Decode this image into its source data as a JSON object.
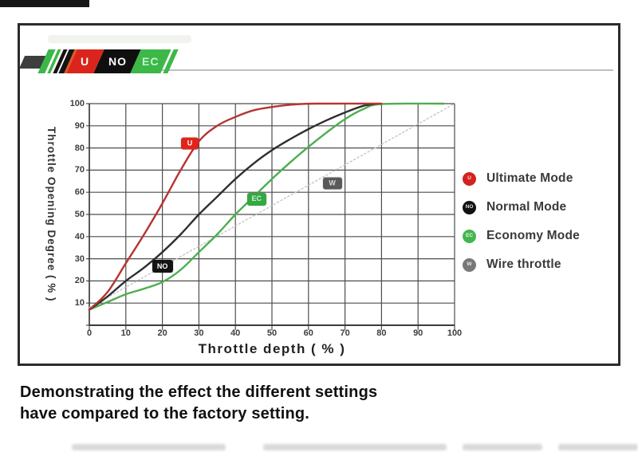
{
  "top_left_bar": {
    "color": "#171717"
  },
  "logo": {
    "gray_bar_color": "#3e3e3e",
    "stripes": [
      {
        "color": "#3cb849",
        "w": 9
      },
      {
        "color": "#ffffff",
        "w": 3
      },
      {
        "color": "#3cb849",
        "w": 4
      },
      {
        "color": "#ffffff",
        "w": 3
      },
      {
        "color": "#141414",
        "w": 5
      },
      {
        "color": "#ffffff",
        "w": 2
      },
      {
        "color": "#141414",
        "w": 7
      },
      {
        "color": "#e2571e",
        "w": 3
      }
    ],
    "blocks": [
      {
        "label": "U",
        "bg": "#da251d",
        "fg": "#ffffff",
        "w": 34
      },
      {
        "label": "NO",
        "bg": "#0f0f0f",
        "fg": "#ffffff",
        "w": 46
      },
      {
        "label": "EC",
        "bg": "#3cb849",
        "fg": "#c9f2cd",
        "w": 38
      }
    ],
    "tail_slash": {
      "color": "#3cb849",
      "w": 6
    }
  },
  "chart_data": {
    "type": "line",
    "xlabel": "Throttle depth ( % )",
    "ylabel": "Throttle Opening Degree ( % )",
    "xlim": [
      0,
      100
    ],
    "ylim": [
      0,
      100
    ],
    "x_ticks": [
      0,
      10,
      20,
      30,
      40,
      50,
      60,
      70,
      80,
      90,
      100
    ],
    "y_ticks": [
      10,
      20,
      30,
      40,
      50,
      60,
      70,
      80,
      90,
      100
    ],
    "grid": true,
    "grid_color": "#4d4d4d",
    "legend_position": "right",
    "series": [
      {
        "name": "Wire throttle",
        "color": "#c4c4c4",
        "style": "dotted",
        "points": [
          [
            0,
            8
          ],
          [
            100,
            100
          ]
        ]
      },
      {
        "name": "Economy Mode",
        "color": "#4cae4f",
        "style": "solid",
        "points": [
          [
            0,
            7
          ],
          [
            5,
            10.5
          ],
          [
            10,
            14
          ],
          [
            15,
            16.5
          ],
          [
            20,
            19.5
          ],
          [
            25,
            25
          ],
          [
            30,
            33
          ],
          [
            35,
            41
          ],
          [
            40,
            50
          ],
          [
            45,
            58
          ],
          [
            50,
            66
          ],
          [
            55,
            73.5
          ],
          [
            60,
            80.5
          ],
          [
            65,
            87
          ],
          [
            70,
            93
          ],
          [
            75,
            97.5
          ],
          [
            80,
            99.8
          ],
          [
            97,
            100
          ]
        ]
      },
      {
        "name": "Normal Mode",
        "color": "#2e2e2e",
        "style": "solid",
        "points": [
          [
            0,
            7
          ],
          [
            5,
            13
          ],
          [
            10,
            20
          ],
          [
            15,
            26
          ],
          [
            20,
            33
          ],
          [
            25,
            41
          ],
          [
            30,
            50
          ],
          [
            35,
            58
          ],
          [
            40,
            66
          ],
          [
            45,
            73
          ],
          [
            50,
            79
          ],
          [
            55,
            84
          ],
          [
            60,
            88.5
          ],
          [
            65,
            92.5
          ],
          [
            70,
            96
          ],
          [
            75,
            99
          ],
          [
            79,
            100
          ]
        ]
      },
      {
        "name": "Ultimate Mode",
        "color": "#b63430",
        "style": "solid",
        "points": [
          [
            0,
            7
          ],
          [
            5,
            15
          ],
          [
            10,
            28
          ],
          [
            15,
            41
          ],
          [
            20,
            55
          ],
          [
            25,
            70
          ],
          [
            30,
            83
          ],
          [
            35,
            90
          ],
          [
            40,
            94
          ],
          [
            45,
            97
          ],
          [
            50,
            98.5
          ],
          [
            55,
            99.5
          ],
          [
            62,
            100
          ],
          [
            80,
            100
          ]
        ]
      }
    ],
    "curve_badges": [
      {
        "label": "U",
        "bg": "#e02419",
        "fg": "#ffffff",
        "x": 27.5,
        "y": 82,
        "w": 22,
        "h": 15
      },
      {
        "label": "NO",
        "bg": "#141414",
        "fg": "#ffffff",
        "x": 20,
        "y": 26.5,
        "w": 26,
        "h": 16
      },
      {
        "label": "EC",
        "bg": "#34a842",
        "fg": "#c9f2cd",
        "x": 45.8,
        "y": 57,
        "w": 24,
        "h": 16
      },
      {
        "label": "W",
        "bg": "#5a5a5a",
        "fg": "#dcdcdc",
        "x": 66.5,
        "y": 64,
        "w": 24,
        "h": 15
      }
    ]
  },
  "legend": {
    "items": [
      {
        "label": "Ultimate Mode",
        "dot": "#d2231f",
        "letter": "U"
      },
      {
        "label": "Normal Mode",
        "dot": "#111111",
        "letter": "NO"
      },
      {
        "label": "Economy Mode",
        "dot": "#43b64c",
        "letter": "EC"
      },
      {
        "label": "Wire throttle",
        "dot": "#787878",
        "letter": "W"
      }
    ]
  },
  "caption": {
    "line1": "Demonstrating the effect the different settings",
    "line2": "have compared to the factory setting."
  }
}
